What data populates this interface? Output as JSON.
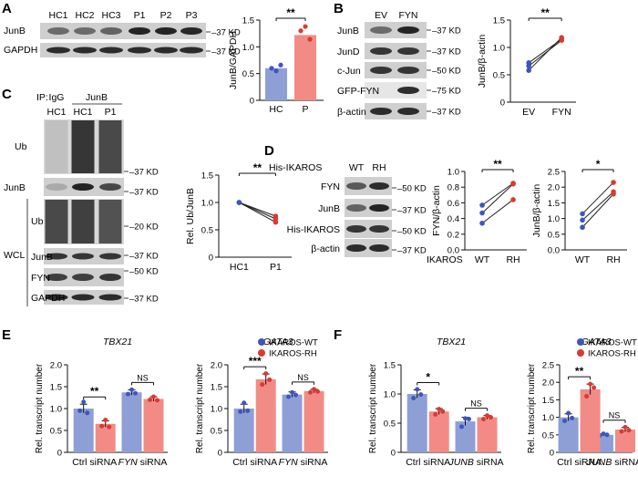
{
  "panels": {
    "A": "A",
    "B": "B",
    "C": "C",
    "D": "D",
    "E": "E",
    "F": "F"
  },
  "colors": {
    "wt": "#8e9fd6",
    "rh": "#f28b86",
    "wt_dot": "#3f55bd",
    "rh_dot": "#d93a32",
    "blot_bg": "#cfcfcf",
    "band": "#1a1a1a"
  },
  "panelA": {
    "lanes": [
      "HC1",
      "HC2",
      "HC3",
      "P1",
      "P2",
      "P3"
    ],
    "rows": [
      "JunB",
      "GAPDH"
    ],
    "markers": [
      "37 KD",
      "37 KD"
    ],
    "chart": {
      "ylabel": "JunB/GAPDH",
      "sig": "**"
    }
  },
  "panelB": {
    "lanes": [
      "EV",
      "FYN"
    ],
    "rows": [
      "JunB",
      "JunD",
      "c-Jun",
      "GFP-FYN",
      "β-actin"
    ],
    "markers": [
      "37 KD",
      "37 KD",
      "50 KD",
      "75 KD",
      "37 KD"
    ],
    "chart": {
      "ylabel": "JunB/β-actin",
      "sig": "**"
    }
  },
  "panelC": {
    "ip": "IP:",
    "ip_igg": "IgG",
    "ip_junb": "JunB",
    "lanes": [
      "HC1",
      "HC1",
      "P1"
    ],
    "ip_rows": [
      "Ub",
      "JunB"
    ],
    "wcl": "WCL",
    "wcl_rows": [
      "Ub",
      "JunB",
      "FYN",
      "GAPDH"
    ],
    "markers_ip": [
      "37 KD",
      "37 KD"
    ],
    "markers_wcl": [
      "20 KD",
      "37 KD",
      "50 KD",
      "37 KD"
    ],
    "chart": {
      "ylabel": "Rel. Ub/JunB",
      "sig": "**"
    }
  },
  "panelD": {
    "header": "His-IKAROS",
    "lanes": [
      "WT",
      "RH"
    ],
    "rows": [
      "FYN",
      "JunB",
      "His-IKAROS",
      "β-actin"
    ],
    "markers": [
      "50 KD",
      "37 KD",
      "50 KD",
      "37 KD"
    ],
    "xlabel": "IKAROS",
    "chart1": {
      "ylabel": "FYN/β-actin",
      "sig": "**"
    },
    "chart2": {
      "ylabel": "JunB/β-actin",
      "sig": "*"
    }
  },
  "panelE": {
    "legend": [
      "IKAROS-WT",
      "IKAROS-RH"
    ],
    "chart1": {
      "title": "TBX21",
      "ylabel": "Rel. transcript number",
      "sig1": "**",
      "sig2": "NS"
    },
    "chart2": {
      "title": "GATA3",
      "ylabel": "Rel. transcript number",
      "sig1": "***",
      "sig2": "NS"
    },
    "xgroups": [
      "Ctrl siRNA",
      "siRNA"
    ],
    "gene_x": "FYN"
  },
  "panelF": {
    "legend": [
      "IKAROS-WT",
      "IKAROS-RH"
    ],
    "chart1": {
      "title": "TBX21",
      "ylabel": "Rel. transcript number",
      "sig1": "*",
      "sig2": "NS"
    },
    "chart2": {
      "title": "GATA3",
      "ylabel": "Rel. transcript number",
      "sig1": "**",
      "sig2": "NS"
    },
    "xgroups": [
      "Ctrl siRNA",
      "siRNA"
    ],
    "gene_x": "JUNB"
  },
  "chart_data": [
    {
      "id": "A",
      "type": "bar",
      "title": "",
      "xlabel": "",
      "ylabel": "JunB/GAPDH",
      "categories": [
        "HC",
        "P"
      ],
      "values": [
        0.6,
        1.22
      ],
      "points": [
        [
          0.6,
          0.55,
          0.66
        ],
        [
          1.3,
          1.38,
          1.14
        ]
      ],
      "ylim": [
        0,
        1.5
      ],
      "yticks": [
        0,
        0.5,
        1.0,
        1.5
      ]
    },
    {
      "id": "B",
      "type": "line",
      "title": "",
      "xlabel": "",
      "ylabel": "JunB/β-actin",
      "categories": [
        "EV",
        "FYN"
      ],
      "pairs": [
        [
          0.72,
          1.15
        ],
        [
          0.66,
          1.13
        ],
        [
          0.58,
          1.18
        ]
      ],
      "ylim": [
        0,
        1.5
      ],
      "yticks": [
        0,
        0.5,
        1.0,
        1.5
      ]
    },
    {
      "id": "C",
      "type": "line",
      "title": "",
      "xlabel": "",
      "ylabel": "Rel. Ub/JunB",
      "categories": [
        "HC1",
        "P1"
      ],
      "pairs": [
        [
          1.0,
          0.75
        ],
        [
          1.0,
          0.7
        ],
        [
          1.0,
          0.64
        ]
      ],
      "ylim": [
        0,
        1.5
      ],
      "yticks": [
        0,
        0.5,
        1.0,
        1.5
      ]
    },
    {
      "id": "D1",
      "type": "line",
      "title": "",
      "xlabel": "IKAROS",
      "ylabel": "FYN/β-actin",
      "categories": [
        "WT",
        "RH"
      ],
      "pairs": [
        [
          0.57,
          0.85
        ],
        [
          0.47,
          0.84
        ],
        [
          0.34,
          0.64
        ]
      ],
      "ylim": [
        0,
        1.0
      ],
      "yticks": [
        0,
        0.2,
        0.4,
        0.6,
        0.8,
        1.0
      ]
    },
    {
      "id": "D2",
      "type": "line",
      "title": "",
      "xlabel": "IKAROS",
      "ylabel": "JunB/β-actin",
      "categories": [
        "WT",
        "RH"
      ],
      "pairs": [
        [
          1.15,
          2.15
        ],
        [
          0.95,
          1.85
        ],
        [
          0.72,
          1.78
        ]
      ],
      "ylim": [
        0,
        2.5
      ],
      "yticks": [
        0,
        0.5,
        1.0,
        1.5,
        2.0,
        2.5
      ]
    },
    {
      "id": "E1",
      "type": "bar",
      "title": "TBX21",
      "xlabel": "",
      "ylabel": "Rel. transcript number",
      "categories": [
        "Ctrl siRNA",
        "FYN siRNA"
      ],
      "series": [
        {
          "name": "IKAROS-WT",
          "values": [
            1.0,
            1.37
          ],
          "errors": [
            0.1,
            0.06
          ],
          "points": [
            [
              0.95,
              1.15,
              0.9
            ],
            [
              1.33,
              1.43,
              1.35
            ]
          ]
        },
        {
          "name": "IKAROS-RH",
          "values": [
            0.65,
            1.22
          ],
          "errors": [
            0.07,
            0.05
          ],
          "points": [
            [
              0.6,
              0.74,
              0.58
            ],
            [
              1.2,
              1.27,
              1.19
            ]
          ]
        }
      ],
      "ylim": [
        0,
        2.0
      ],
      "yticks": [
        0,
        0.5,
        1.0,
        1.5,
        2.0
      ]
    },
    {
      "id": "E2",
      "type": "bar",
      "title": "GATA3",
      "xlabel": "",
      "ylabel": "Rel. transcript number",
      "categories": [
        "Ctrl siRNA",
        "FYN siRNA"
      ],
      "series": [
        {
          "name": "IKAROS-WT",
          "values": [
            1.0,
            1.32
          ],
          "errors": [
            0.1,
            0.06
          ],
          "points": [
            [
              0.93,
              1.13,
              0.95
            ],
            [
              1.27,
              1.37,
              1.31
            ]
          ]
        },
        {
          "name": "IKAROS-RH",
          "values": [
            1.67,
            1.4
          ],
          "errors": [
            0.12,
            0.04
          ],
          "points": [
            [
              1.55,
              1.8,
              1.66
            ],
            [
              1.37,
              1.44,
              1.39
            ]
          ]
        }
      ],
      "ylim": [
        0,
        2.0
      ],
      "yticks": [
        0,
        0.5,
        1.0,
        1.5,
        2.0
      ]
    },
    {
      "id": "F1",
      "type": "bar",
      "title": "TBX21",
      "xlabel": "",
      "ylabel": "Rel. transcript number",
      "categories": [
        "Ctrl siRNA",
        "JUNB siRNA"
      ],
      "series": [
        {
          "name": "IKAROS-WT",
          "values": [
            1.0,
            0.53
          ],
          "errors": [
            0.07,
            0.07
          ],
          "points": [
            [
              0.93,
              1.08,
              0.99
            ],
            [
              0.44,
              0.58,
              0.57
            ]
          ]
        },
        {
          "name": "IKAROS-RH",
          "values": [
            0.7,
            0.6
          ],
          "errors": [
            0.05,
            0.03
          ],
          "points": [
            [
              0.65,
              0.74,
              0.7
            ],
            [
              0.57,
              0.63,
              0.6
            ]
          ]
        }
      ],
      "ylim": [
        0,
        1.5
      ],
      "yticks": [
        0,
        0.5,
        1.0,
        1.5
      ]
    },
    {
      "id": "F2",
      "type": "bar",
      "title": "GATA3",
      "xlabel": "",
      "ylabel": "Rel. transcript number",
      "categories": [
        "Ctrl siRNA",
        "JUNB siRNA"
      ],
      "series": [
        {
          "name": "IKAROS-WT",
          "values": [
            1.0,
            0.5
          ],
          "errors": [
            0.1,
            0.03
          ],
          "points": [
            [
              0.9,
              1.12,
              0.98
            ],
            [
              0.48,
              0.53,
              0.5
            ]
          ]
        },
        {
          "name": "IKAROS-RH",
          "values": [
            1.8,
            0.65
          ],
          "errors": [
            0.15,
            0.06
          ],
          "points": [
            [
              1.6,
              1.95,
              1.85
            ],
            [
              0.6,
              0.72,
              0.63
            ]
          ]
        }
      ],
      "ylim": [
        0,
        2.5
      ],
      "yticks": [
        0,
        0.5,
        1.0,
        1.5,
        2.0,
        2.5
      ]
    }
  ]
}
